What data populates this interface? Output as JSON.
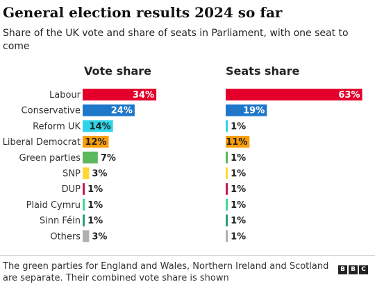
{
  "title": "General election results 2024 so far",
  "subtitle": "Share of the UK vote and share of seats in Parliament, with one seat to come",
  "footer": {
    "note": "The green parties for England and Wales, Northern Ireland and Scotland are separate. Their combined vote share is shown",
    "logo_letters": [
      "B",
      "B",
      "C"
    ]
  },
  "chart_data": {
    "type": "bar",
    "categories": [
      "Labour",
      "Conservative",
      "Reform UK",
      "Liberal Democrat",
      "Green parties",
      "SNP",
      "DUP",
      "Plaid Cymru",
      "Sinn Féin",
      "Others"
    ],
    "series": [
      {
        "name": "Vote share",
        "values": [
          34,
          24,
          14,
          12,
          7,
          3,
          1,
          1,
          1,
          3
        ],
        "labels": [
          "34%",
          "24%",
          "14%",
          "12%",
          "7%",
          "3%",
          "1%",
          "1%",
          "1%",
          "3%"
        ]
      },
      {
        "name": "Seats share",
        "values": [
          63,
          19,
          1,
          11,
          1,
          1,
          1,
          1,
          1,
          1
        ],
        "labels": [
          "63%",
          "19%",
          "1%",
          "11%",
          "1%",
          "1%",
          "1%",
          "1%",
          "1%",
          "1%"
        ]
      }
    ],
    "colors": [
      "#e4003b",
      "#0087dc",
      "#12b6cf",
      "#faa61a",
      "#6ab023",
      "#fdf38e",
      "#d46a4c",
      "#3f8428",
      "#326760",
      "#aaaaaa"
    ],
    "axis_hidden": true,
    "legend": "none"
  }
}
